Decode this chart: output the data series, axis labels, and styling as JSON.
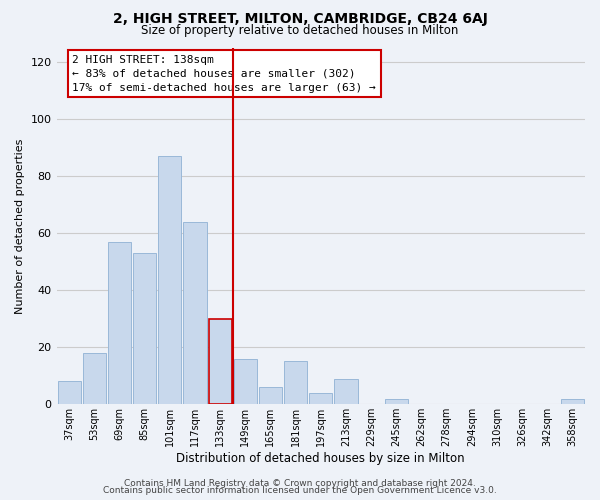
{
  "title": "2, HIGH STREET, MILTON, CAMBRIDGE, CB24 6AJ",
  "subtitle": "Size of property relative to detached houses in Milton",
  "xlabel": "Distribution of detached houses by size in Milton",
  "ylabel": "Number of detached properties",
  "footer_line1": "Contains HM Land Registry data © Crown copyright and database right 2024.",
  "footer_line2": "Contains public sector information licensed under the Open Government Licence v3.0.",
  "bin_labels": [
    "37sqm",
    "53sqm",
    "69sqm",
    "85sqm",
    "101sqm",
    "117sqm",
    "133sqm",
    "149sqm",
    "165sqm",
    "181sqm",
    "197sqm",
    "213sqm",
    "229sqm",
    "245sqm",
    "262sqm",
    "278sqm",
    "294sqm",
    "310sqm",
    "326sqm",
    "342sqm",
    "358sqm"
  ],
  "bar_heights": [
    8,
    18,
    57,
    53,
    87,
    64,
    30,
    16,
    6,
    15,
    4,
    9,
    0,
    2,
    0,
    0,
    0,
    0,
    0,
    0,
    2
  ],
  "bar_color": "#c8d8ec",
  "bar_edge_color": "#9ab8d8",
  "highlight_bar_index": 6,
  "highlight_bar_edge_color": "#cc0000",
  "vline_color": "#cc0000",
  "ylim": [
    0,
    125
  ],
  "yticks": [
    0,
    20,
    40,
    60,
    80,
    100,
    120
  ],
  "annotation_title": "2 HIGH STREET: 138sqm",
  "annotation_line1": "← 83% of detached houses are smaller (302)",
  "annotation_line2": "17% of semi-detached houses are larger (63) →",
  "annotation_box_facecolor": "#ffffff",
  "annotation_box_edgecolor": "#cc0000",
  "grid_color": "#cccccc",
  "background_color": "#eef2f8"
}
